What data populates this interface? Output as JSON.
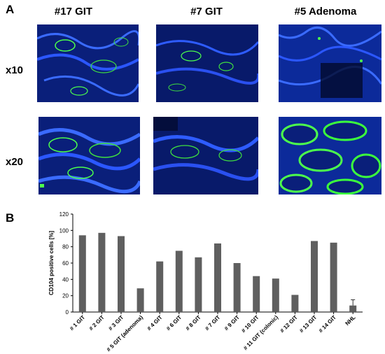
{
  "panel_a": {
    "label": "A",
    "columns": [
      "#17 GIT",
      "#7 GIT",
      "#5 Adenoma"
    ],
    "rows": [
      "x10",
      "x20"
    ]
  },
  "panel_b": {
    "label": "B"
  },
  "colors": {
    "tissue_blue": "#1a3bd6",
    "stain_green": "#3cff3c",
    "bar": "#5f5f5f",
    "background_dark": "#05103a"
  },
  "chart_data": {
    "type": "bar",
    "ylabel": "CD104 positive cells [%]",
    "xlabel": "",
    "ylim": [
      0,
      120
    ],
    "yticks": [
      0,
      20,
      40,
      60,
      80,
      100,
      120
    ],
    "grid": false,
    "legend": "none",
    "categories": [
      "# 1 GIT",
      "# 2 GIT",
      "# 3 GIT",
      "# 5 GIT (adenoma)",
      "# 4 GIT",
      "# 6 GIT",
      "# 8 GIT",
      "# 7 GIT",
      "# 9 GIT",
      "# 10 GIT",
      "# 11 GIT (colonic)",
      "# 12 GIT",
      "# 13 GIT",
      "# 14 GIT",
      "NHL"
    ],
    "values": [
      94,
      97,
      93,
      29,
      62,
      75,
      67,
      84,
      60,
      44,
      41,
      21,
      87,
      85,
      8
    ],
    "error_bars": [
      null,
      null,
      null,
      null,
      null,
      null,
      null,
      null,
      null,
      null,
      null,
      null,
      null,
      null,
      7
    ]
  }
}
